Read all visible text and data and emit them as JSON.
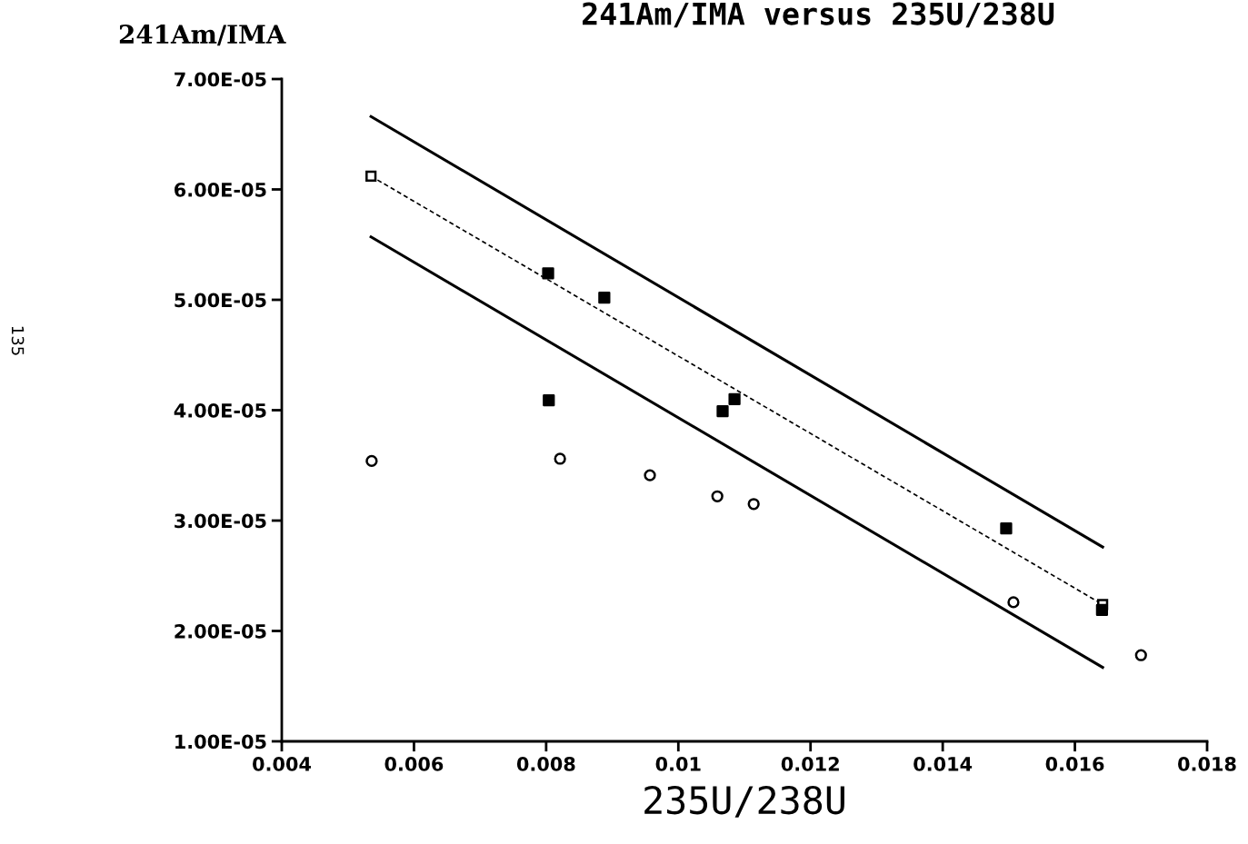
{
  "chart_data": {
    "type": "scatter",
    "title": "241Am/IMA versus 235U/238U",
    "xlabel": "235U/238U",
    "ylabel": "241Am/IMA",
    "annotations": [
      "135"
    ],
    "xlim": [
      0.004,
      0.018
    ],
    "xticks": [
      0.004,
      0.006,
      0.008,
      0.01,
      0.012,
      0.014,
      0.016,
      0.018
    ],
    "ylim": [
      1e-05,
      7e-05
    ],
    "yticks": [
      {
        "value": 1e-05,
        "label": "1.00E-05"
      },
      {
        "value": 2e-05,
        "label": "2.00E-05"
      },
      {
        "value": 3e-05,
        "label": "3.00E-05"
      },
      {
        "value": 4e-05,
        "label": "4.00E-05"
      },
      {
        "value": 5e-05,
        "label": "5.00E-05"
      },
      {
        "value": 6e-05,
        "label": "6.00E-05"
      },
      {
        "value": 7e-05,
        "label": "7.00E-05"
      }
    ],
    "grid": false,
    "legend": false,
    "series": [
      {
        "type": "line",
        "color": "#000000",
        "line_style": "solid",
        "x": [
          0.00535,
          0.01642
        ],
        "values": [
          6.66e-05,
          2.76e-05
        ]
      },
      {
        "type": "line",
        "color": "#000000",
        "line_style": "dashed",
        "marker": "square",
        "x": [
          0.00535,
          0.01642
        ],
        "values": [
          6.12e-05,
          2.24e-05
        ]
      },
      {
        "type": "line",
        "color": "#000000",
        "line_style": "solid",
        "x": [
          0.00535,
          0.01642
        ],
        "values": [
          5.57e-05,
          1.67e-05
        ]
      },
      {
        "color": "#000000",
        "marker": "square",
        "x": [
          0.00803,
          0.00888,
          0.00804,
          0.01067,
          0.01085,
          0.01496,
          0.01641
        ],
        "values": [
          5.24e-05,
          5.02e-05,
          4.09e-05,
          3.99e-05,
          4.1e-05,
          2.93e-05,
          2.19e-05
        ]
      },
      {
        "color": "#000000",
        "marker": "circle",
        "x": [
          0.00536,
          0.00821,
          0.00957,
          0.01059,
          0.01114,
          0.01507,
          0.017
        ],
        "values": [
          3.54e-05,
          3.56e-05,
          3.41e-05,
          3.22e-05,
          3.15e-05,
          2.26e-05,
          1.78e-05
        ]
      }
    ]
  }
}
